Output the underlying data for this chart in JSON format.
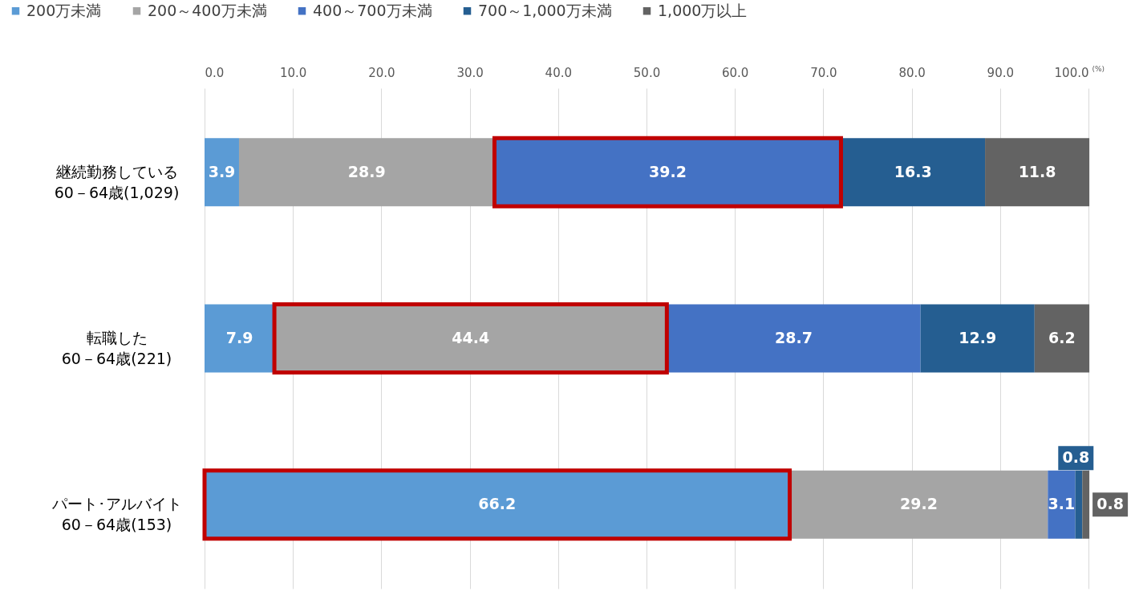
{
  "chart_data": {
    "type": "bar",
    "orientation": "horizontal",
    "stacked": true,
    "xlabel": "(%)",
    "categories": [
      "継続勤務している\n60－64歳(1,029)",
      "転職した\n60－64歳(221)",
      "パート･アルバイト\n60－64歳(153)"
    ],
    "series": [
      {
        "name": "200万未満",
        "color": "#5b9bd5",
        "values": [
          3.9,
          7.9,
          66.2
        ]
      },
      {
        "name": "200～400万未満",
        "color": "#a5a5a5",
        "values": [
          28.9,
          44.4,
          29.2
        ]
      },
      {
        "name": "400～700万未満",
        "color": "#4472c4",
        "values": [
          39.2,
          28.7,
          3.1
        ]
      },
      {
        "name": "700～1,000万未満",
        "color": "#255e91",
        "values": [
          16.3,
          12.9,
          0.8
        ]
      },
      {
        "name": "1,000万以上",
        "color": "#636363",
        "values": [
          11.8,
          6.2,
          0.8
        ]
      }
    ],
    "xlim": [
      0,
      100
    ],
    "xticks": [
      {
        "value": 0,
        "label": "0.0"
      },
      {
        "value": 10,
        "label": "10.0"
      },
      {
        "value": 20,
        "label": "20.0"
      },
      {
        "value": 30,
        "label": "30.0"
      },
      {
        "value": 40,
        "label": "40.0"
      },
      {
        "value": 50,
        "label": "50.0"
      },
      {
        "value": 60,
        "label": "60.0"
      },
      {
        "value": 70,
        "label": "70.0"
      },
      {
        "value": 80,
        "label": "80.0"
      },
      {
        "value": 90,
        "label": "90.0"
      },
      {
        "value": 100,
        "label": "100.0"
      }
    ],
    "grid": "x",
    "legend": "top",
    "data_labels": true
  }
}
